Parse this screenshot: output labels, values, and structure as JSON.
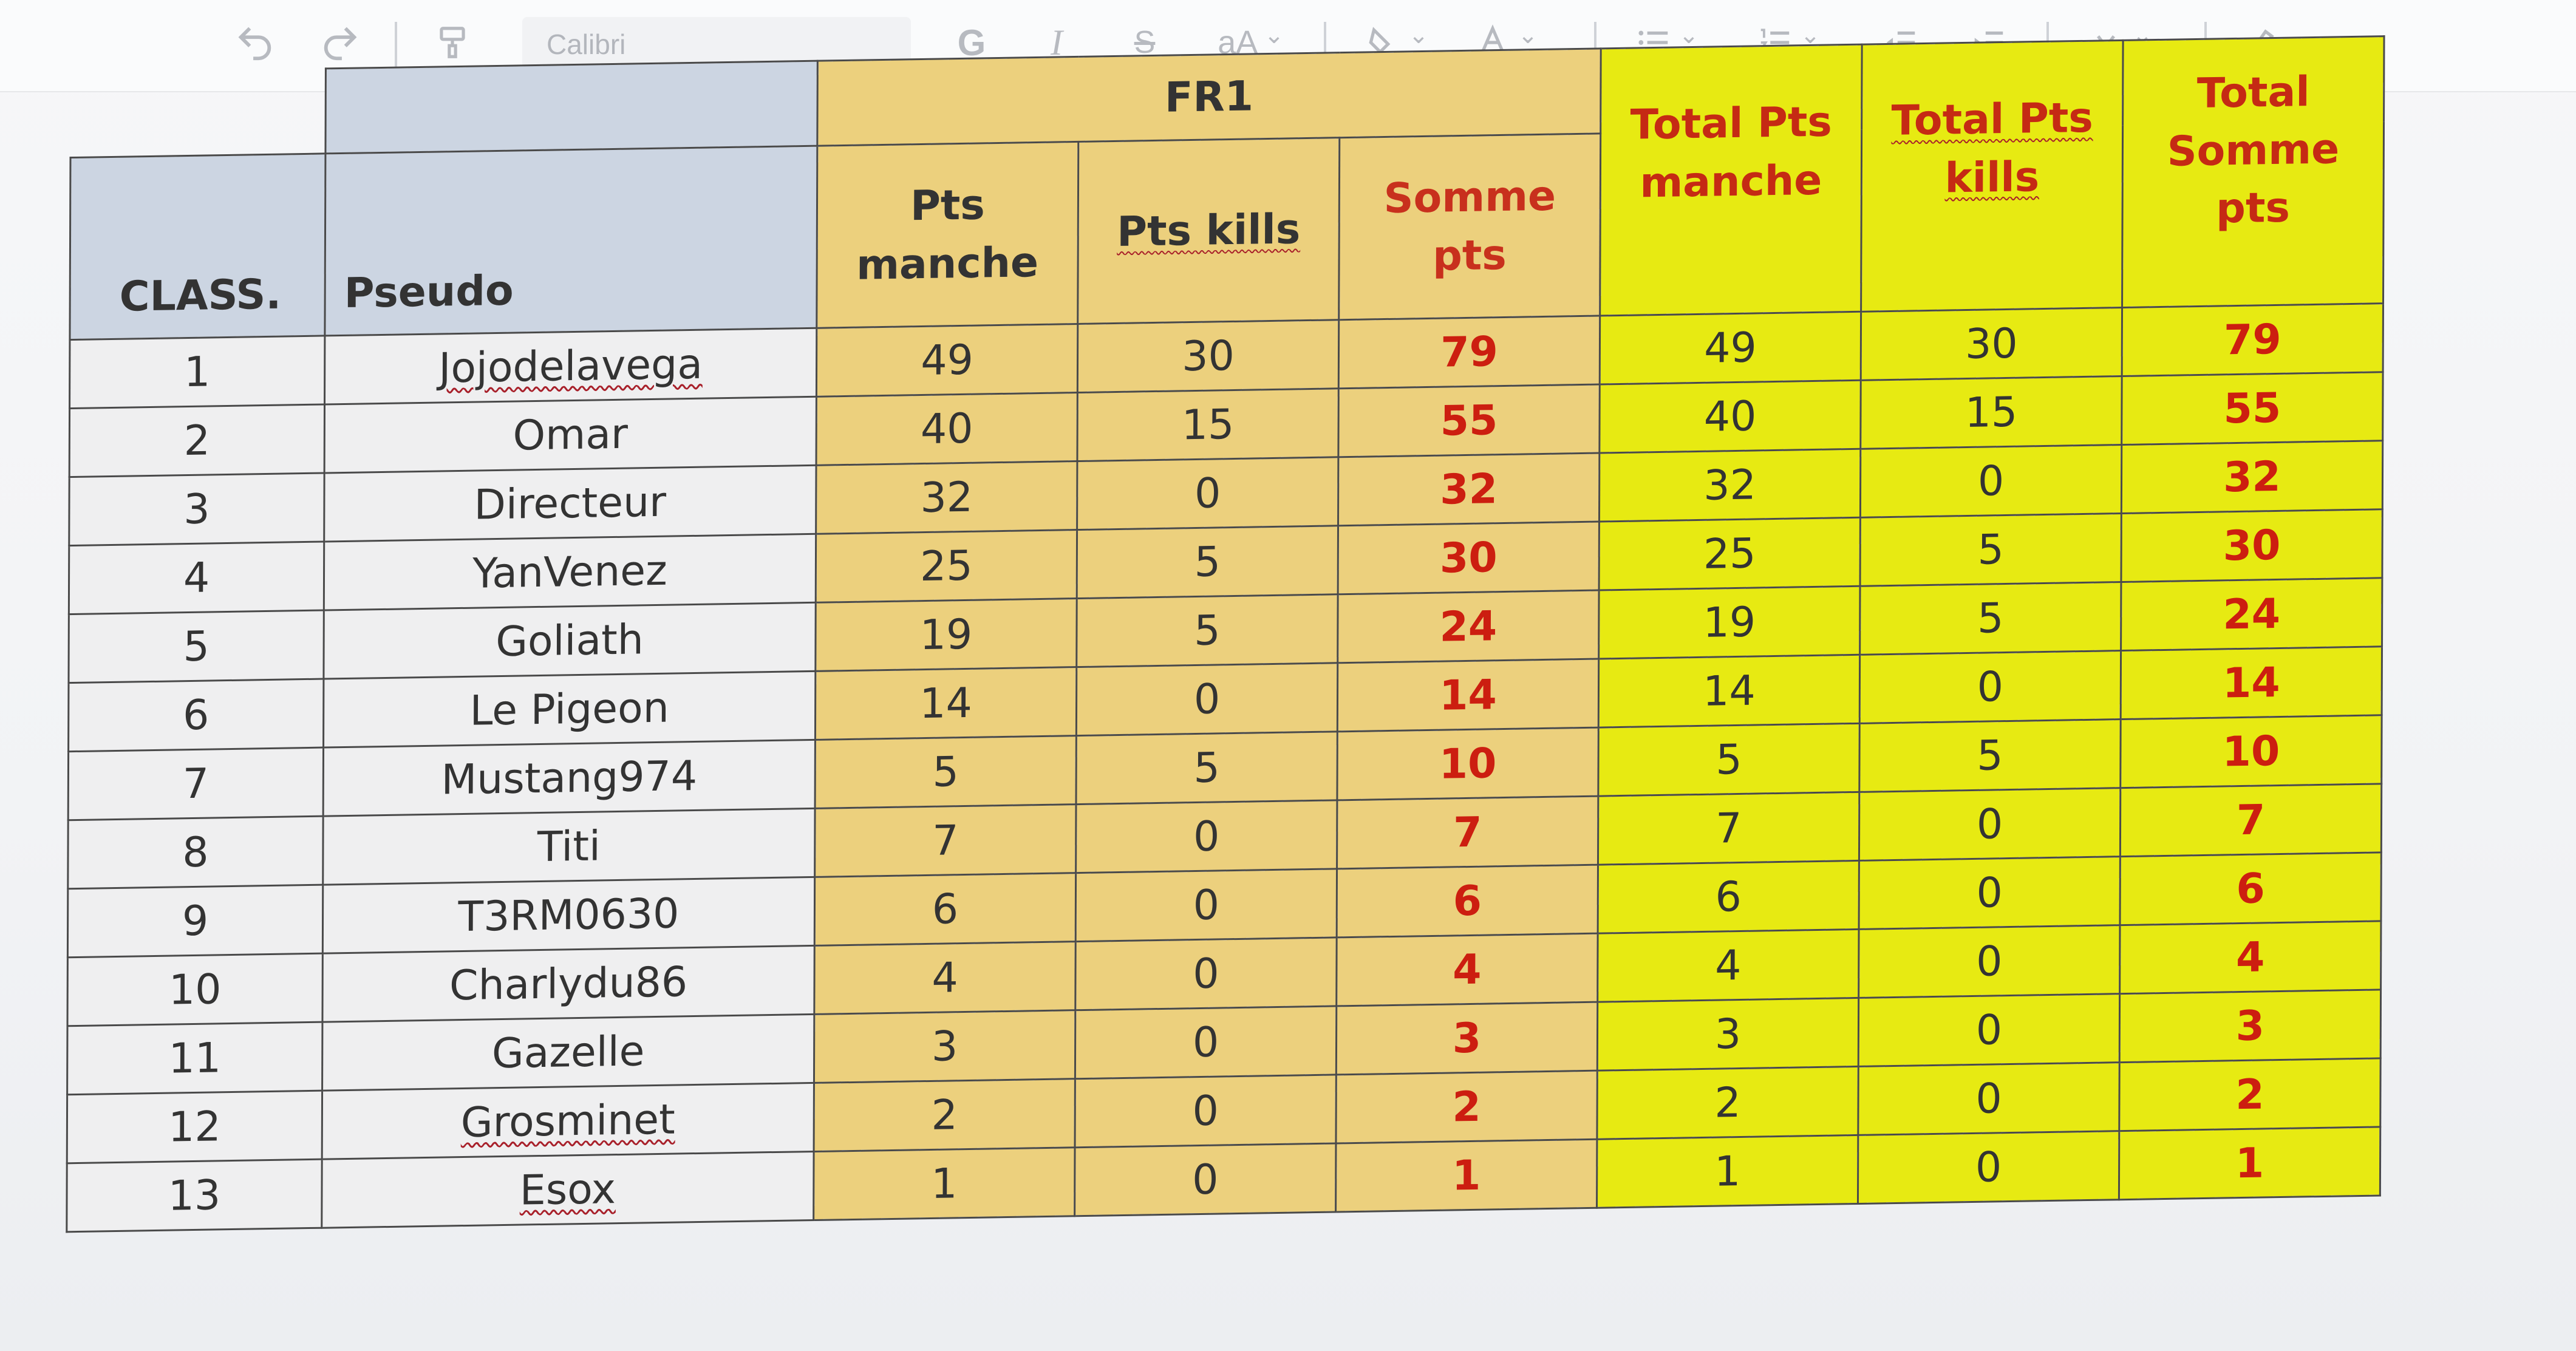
{
  "toolbar": {
    "undo_icon": "undo-arrow-icon",
    "redo_icon": "redo-arrow-icon",
    "format_painter_icon": "format-painter-icon",
    "font_name": "Calibri",
    "bold_label": "G",
    "italic_label": "I",
    "strike_label": "S",
    "font_size_label": "aA",
    "fill_icon": "fill-color-icon",
    "font_color_icon": "font-color-icon",
    "bullets_icon": "bullet-list-icon",
    "numbering_icon": "numbered-list-icon",
    "outdent_icon": "decrease-indent-icon",
    "indent_icon": "increase-indent-icon",
    "merge_icon": "merge-cells-icon",
    "clear_icon": "clear-format-icon"
  },
  "table": {
    "header": {
      "class_label": "CLASS.",
      "pseudo_label": "Pseudo",
      "group_label": "FR1",
      "pts_manche": "Pts manche",
      "pts_kills": "Pts kills",
      "somme_pts": "Somme pts",
      "total_pts_manche": "Total Pts manche",
      "total_pts_kills": "Total Pts kills",
      "total_somme_pts": "Total Somme pts"
    },
    "rows": [
      {
        "rank": "1",
        "pseudo": "Jojodelavega",
        "pts_manche": "49",
        "pts_kills": "30",
        "somme": "79",
        "total_manche": "49",
        "total_kills": "30",
        "total_somme": "79"
      },
      {
        "rank": "2",
        "pseudo": "Omar",
        "pts_manche": "40",
        "pts_kills": "15",
        "somme": "55",
        "total_manche": "40",
        "total_kills": "15",
        "total_somme": "55"
      },
      {
        "rank": "3",
        "pseudo": "Directeur",
        "pts_manche": "32",
        "pts_kills": "0",
        "somme": "32",
        "total_manche": "32",
        "total_kills": "0",
        "total_somme": "32"
      },
      {
        "rank": "4",
        "pseudo": "YanVenez",
        "pts_manche": "25",
        "pts_kills": "5",
        "somme": "30",
        "total_manche": "25",
        "total_kills": "5",
        "total_somme": "30"
      },
      {
        "rank": "5",
        "pseudo": "Goliath",
        "pts_manche": "19",
        "pts_kills": "5",
        "somme": "24",
        "total_manche": "19",
        "total_kills": "5",
        "total_somme": "24"
      },
      {
        "rank": "6",
        "pseudo": "Le Pigeon",
        "pts_manche": "14",
        "pts_kills": "0",
        "somme": "14",
        "total_manche": "14",
        "total_kills": "0",
        "total_somme": "14"
      },
      {
        "rank": "7",
        "pseudo": "Mustang974",
        "pts_manche": "5",
        "pts_kills": "5",
        "somme": "10",
        "total_manche": "5",
        "total_kills": "5",
        "total_somme": "10"
      },
      {
        "rank": "8",
        "pseudo": "Titi",
        "pts_manche": "7",
        "pts_kills": "0",
        "somme": "7",
        "total_manche": "7",
        "total_kills": "0",
        "total_somme": "7"
      },
      {
        "rank": "9",
        "pseudo": "T3RM0630",
        "pts_manche": "6",
        "pts_kills": "0",
        "somme": "6",
        "total_manche": "6",
        "total_kills": "0",
        "total_somme": "6"
      },
      {
        "rank": "10",
        "pseudo": "Charlydu86",
        "pts_manche": "4",
        "pts_kills": "0",
        "somme": "4",
        "total_manche": "4",
        "total_kills": "0",
        "total_somme": "4"
      },
      {
        "rank": "11",
        "pseudo": "Gazelle",
        "pts_manche": "3",
        "pts_kills": "0",
        "somme": "3",
        "total_manche": "3",
        "total_kills": "0",
        "total_somme": "3"
      },
      {
        "rank": "12",
        "pseudo": "Grosminet",
        "pts_manche": "2",
        "pts_kills": "0",
        "somme": "2",
        "total_manche": "2",
        "total_kills": "0",
        "total_somme": "2"
      },
      {
        "rank": "13",
        "pseudo": "Esox",
        "pts_manche": "1",
        "pts_kills": "0",
        "somme": "1",
        "total_manche": "1",
        "total_kills": "0",
        "total_somme": "1"
      }
    ]
  },
  "colors": {
    "header_blue_gray": "#ccd5e2",
    "fr1_tan": "#ecd07d",
    "totals_yellow": "#e7ea12",
    "somme_red": "#cc1e10"
  }
}
